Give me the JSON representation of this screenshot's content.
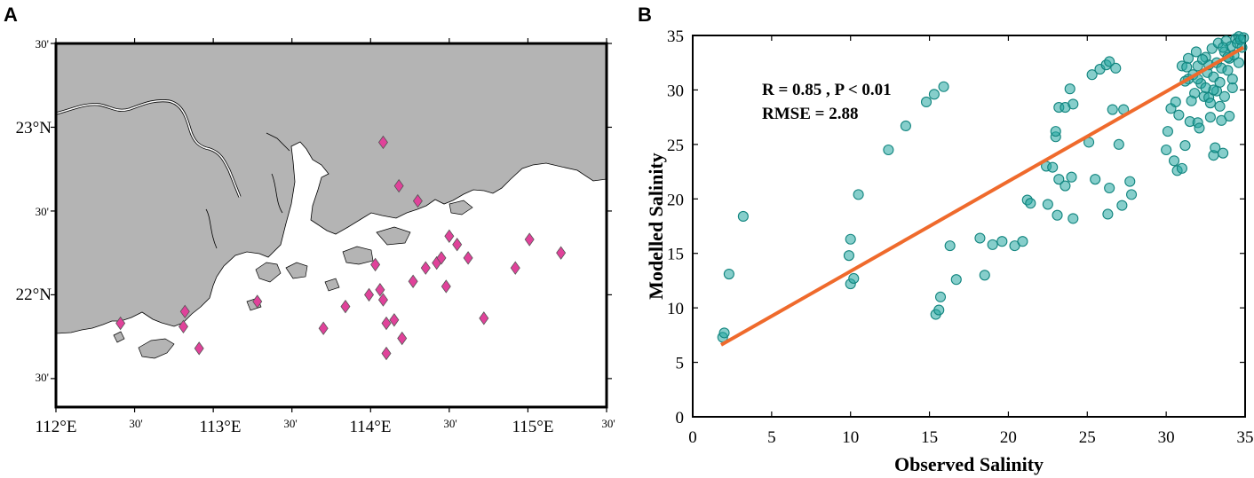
{
  "panels": {
    "a_label": "A",
    "b_label": "B"
  },
  "map": {
    "x_ticks_major": [
      "112°E",
      "113°E",
      "114°E",
      "115°E"
    ],
    "x_ticks_minor": [
      "30'",
      "30'",
      "30'",
      "30'"
    ],
    "y_ticks_major": [
      "23°N",
      "22°N"
    ],
    "y_ticks_minor": [
      "30'",
      "30'",
      "30'"
    ],
    "land_color": "#b4b4b4",
    "sea_color": "#ffffff",
    "marker_color": "#e0429a",
    "stations": [
      {
        "lon": 112.41,
        "lat": 21.83
      },
      {
        "lon": 112.82,
        "lat": 21.9
      },
      {
        "lon": 112.81,
        "lat": 21.81
      },
      {
        "lon": 112.91,
        "lat": 21.68
      },
      {
        "lon": 113.28,
        "lat": 21.96
      },
      {
        "lon": 113.7,
        "lat": 21.8
      },
      {
        "lon": 113.84,
        "lat": 21.93
      },
      {
        "lon": 113.99,
        "lat": 22.0
      },
      {
        "lon": 114.03,
        "lat": 22.18
      },
      {
        "lon": 114.08,
        "lat": 21.97
      },
      {
        "lon": 114.06,
        "lat": 22.03
      },
      {
        "lon": 114.1,
        "lat": 21.83
      },
      {
        "lon": 114.1,
        "lat": 21.65
      },
      {
        "lon": 114.15,
        "lat": 21.85
      },
      {
        "lon": 114.2,
        "lat": 21.74
      },
      {
        "lon": 114.27,
        "lat": 22.08
      },
      {
        "lon": 114.35,
        "lat": 22.16
      },
      {
        "lon": 114.42,
        "lat": 22.19
      },
      {
        "lon": 114.45,
        "lat": 22.22
      },
      {
        "lon": 114.5,
        "lat": 22.35
      },
      {
        "lon": 114.55,
        "lat": 22.3
      },
      {
        "lon": 114.62,
        "lat": 22.22
      },
      {
        "lon": 114.48,
        "lat": 22.05
      },
      {
        "lon": 114.72,
        "lat": 21.86
      },
      {
        "lon": 114.92,
        "lat": 22.16
      },
      {
        "lon": 115.01,
        "lat": 22.33
      },
      {
        "lon": 115.21,
        "lat": 22.25
      },
      {
        "lon": 114.3,
        "lat": 22.56
      },
      {
        "lon": 114.18,
        "lat": 22.65
      },
      {
        "lon": 114.08,
        "lat": 22.91
      }
    ]
  },
  "chart_data": {
    "type": "scatter",
    "xlabel": "Observed Salinity",
    "ylabel": "Modelled Salinity",
    "xlim": [
      0,
      35
    ],
    "ylim": [
      0,
      35
    ],
    "x_ticks": [
      "0",
      "5",
      "10",
      "15",
      "20",
      "25",
      "30",
      "35"
    ],
    "y_ticks": [
      "0",
      "5",
      "10",
      "15",
      "20",
      "25",
      "30",
      "35"
    ],
    "annotation_line1": "R =  0.85 , P < 0.01",
    "annotation_line2": "RMSE = 2.88",
    "point_color": "#22a6a0",
    "fit_color": "#ef6a2c",
    "fit_line": {
      "x": [
        1.8,
        34.9
      ],
      "y": [
        6.6,
        33.9
      ]
    },
    "points": [
      [
        1.9,
        7.3
      ],
      [
        2.0,
        7.7
      ],
      [
        2.3,
        13.1
      ],
      [
        3.2,
        18.4
      ],
      [
        9.9,
        14.8
      ],
      [
        10.0,
        16.3
      ],
      [
        10.0,
        12.2
      ],
      [
        10.2,
        12.7
      ],
      [
        10.5,
        20.4
      ],
      [
        12.4,
        24.5
      ],
      [
        13.5,
        26.7
      ],
      [
        14.8,
        28.9
      ],
      [
        15.3,
        29.6
      ],
      [
        15.9,
        30.3
      ],
      [
        15.4,
        9.4
      ],
      [
        15.6,
        9.8
      ],
      [
        15.7,
        11.0
      ],
      [
        16.3,
        15.7
      ],
      [
        16.7,
        12.6
      ],
      [
        18.2,
        16.4
      ],
      [
        18.5,
        13.0
      ],
      [
        19.0,
        15.8
      ],
      [
        19.6,
        16.1
      ],
      [
        20.4,
        15.7
      ],
      [
        20.9,
        16.1
      ],
      [
        21.2,
        19.9
      ],
      [
        21.4,
        19.6
      ],
      [
        22.4,
        23.0
      ],
      [
        22.5,
        19.5
      ],
      [
        22.8,
        22.9
      ],
      [
        23.0,
        25.7
      ],
      [
        23.0,
        26.2
      ],
      [
        23.2,
        28.4
      ],
      [
        23.2,
        21.8
      ],
      [
        23.6,
        28.4
      ],
      [
        23.6,
        21.2
      ],
      [
        23.1,
        18.5
      ],
      [
        23.9,
        30.1
      ],
      [
        24.1,
        28.7
      ],
      [
        24.0,
        22.0
      ],
      [
        24.1,
        18.2
      ],
      [
        25.1,
        25.2
      ],
      [
        25.3,
        31.4
      ],
      [
        25.5,
        21.8
      ],
      [
        25.8,
        31.9
      ],
      [
        26.2,
        32.3
      ],
      [
        26.4,
        32.6
      ],
      [
        26.8,
        32.0
      ],
      [
        26.3,
        18.6
      ],
      [
        26.6,
        28.2
      ],
      [
        26.4,
        21.0
      ],
      [
        27.0,
        25.0
      ],
      [
        27.2,
        19.4
      ],
      [
        27.3,
        28.2
      ],
      [
        27.7,
        21.6
      ],
      [
        27.8,
        20.4
      ],
      [
        30.0,
        24.5
      ],
      [
        30.1,
        26.2
      ],
      [
        30.3,
        28.3
      ],
      [
        30.5,
        23.5
      ],
      [
        30.7,
        22.6
      ],
      [
        30.8,
        27.7
      ],
      [
        31.0,
        22.8
      ],
      [
        31.2,
        24.9
      ],
      [
        31.0,
        32.2
      ],
      [
        31.3,
        32.1
      ],
      [
        31.4,
        31.0
      ],
      [
        31.5,
        27.1
      ],
      [
        31.7,
        31.4
      ],
      [
        31.8,
        29.7
      ],
      [
        32.0,
        32.2
      ],
      [
        32.0,
        27.0
      ],
      [
        32.1,
        26.5
      ],
      [
        32.2,
        30.6
      ],
      [
        32.4,
        29.4
      ],
      [
        32.5,
        33.0
      ],
      [
        32.6,
        31.6
      ],
      [
        32.7,
        32.3
      ],
      [
        32.7,
        29.3
      ],
      [
        32.8,
        27.5
      ],
      [
        32.9,
        33.8
      ],
      [
        33.0,
        31.2
      ],
      [
        33.0,
        24.0
      ],
      [
        33.1,
        24.7
      ],
      [
        33.2,
        32.5
      ],
      [
        33.2,
        29.9
      ],
      [
        33.3,
        34.3
      ],
      [
        33.4,
        30.7
      ],
      [
        33.5,
        32.0
      ],
      [
        33.5,
        27.2
      ],
      [
        33.6,
        24.2
      ],
      [
        33.7,
        33.5
      ],
      [
        33.7,
        29.4
      ],
      [
        33.8,
        34.5
      ],
      [
        33.9,
        31.8
      ],
      [
        34.0,
        32.9
      ],
      [
        34.0,
        27.6
      ],
      [
        34.1,
        34.0
      ],
      [
        34.2,
        30.2
      ],
      [
        34.3,
        33.2
      ],
      [
        34.4,
        34.7
      ],
      [
        34.5,
        34.3
      ],
      [
        34.6,
        34.9
      ],
      [
        34.7,
        34.6
      ],
      [
        34.9,
        34.8
      ],
      [
        34.8,
        33.9
      ],
      [
        32.3,
        32.8
      ],
      [
        31.9,
        33.5
      ],
      [
        33.0,
        30.0
      ],
      [
        32.5,
        30.2
      ],
      [
        31.6,
        29.0
      ],
      [
        34.2,
        31.0
      ],
      [
        33.4,
        28.5
      ],
      [
        32.8,
        28.8
      ],
      [
        31.2,
        30.8
      ],
      [
        30.6,
        28.9
      ],
      [
        34.6,
        32.5
      ],
      [
        33.9,
        33.0
      ],
      [
        32.0,
        31.0
      ],
      [
        33.6,
        33.9
      ],
      [
        31.4,
        32.9
      ]
    ]
  }
}
